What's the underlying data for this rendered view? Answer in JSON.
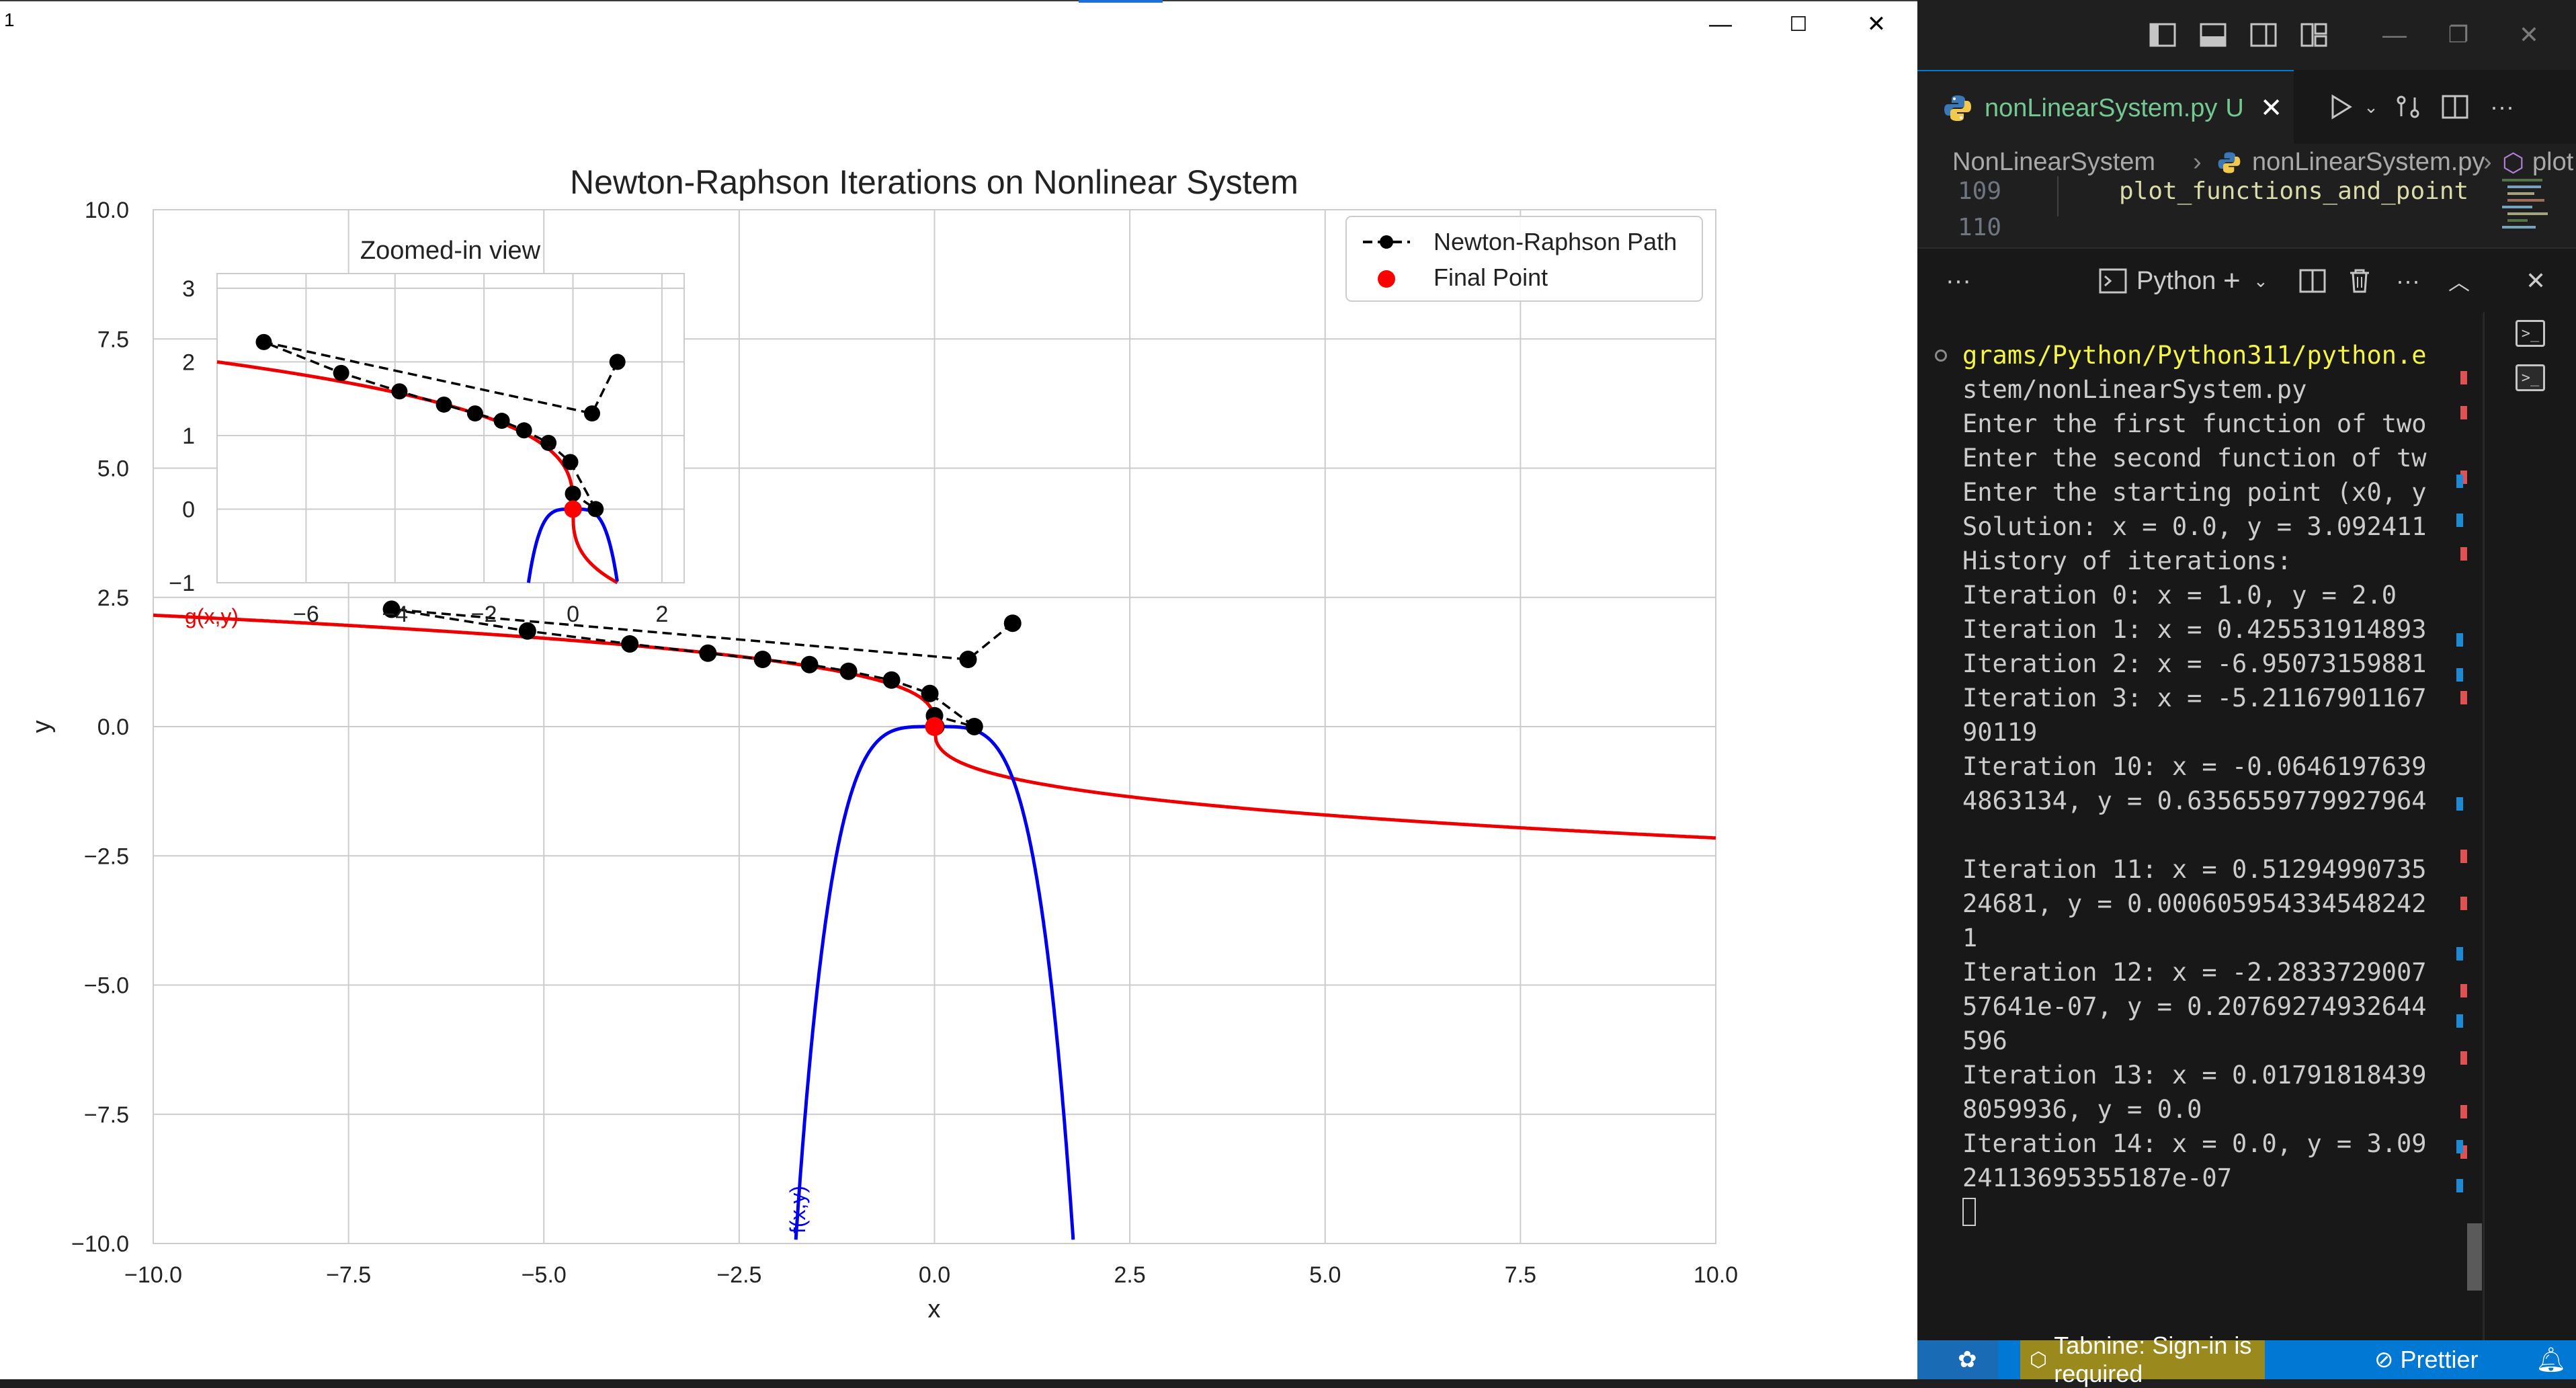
{
  "plot_window": {
    "title": "1",
    "controls": {
      "minimize": "—",
      "maximize": "☐",
      "close": "✕"
    }
  },
  "chart_data": [
    {
      "type": "line",
      "title": "Newton-Raphson Iterations on Nonlinear System",
      "xlabel": "x",
      "ylabel": "y",
      "xlim": [
        -10,
        10
      ],
      "ylim": [
        -10,
        10
      ],
      "xticks": [
        "−10.0",
        "−7.5",
        "−5.0",
        "−2.5",
        "0.0",
        "2.5",
        "5.0",
        "7.5",
        "10.0"
      ],
      "yticks": [
        "−10.0",
        "−7.5",
        "−5.0",
        "−2.5",
        "0.0",
        "2.5",
        "5.0",
        "7.5",
        "10.0"
      ],
      "grid": true,
      "legend_position": "top-right",
      "legend": [
        {
          "label": "Newton-Raphson Path",
          "style": "black dashed line with dots"
        },
        {
          "label": "Final Point",
          "style": "red dot"
        }
      ],
      "curve_labels": {
        "g": "g(x,y)",
        "f": "f(x,y)"
      },
      "colors": {
        "f": "#0000ee",
        "g": "#ee0000",
        "path": "#000000",
        "final": "#ff0000"
      },
      "path_points": [
        [
          1.0,
          2.0
        ],
        [
          0.43,
          1.3
        ],
        [
          -6.95,
          2.27
        ],
        [
          -5.21,
          1.85
        ],
        [
          -3.9,
          1.6
        ],
        [
          -2.9,
          1.42
        ],
        [
          -2.2,
          1.3
        ],
        [
          -1.6,
          1.2
        ],
        [
          -1.1,
          1.07
        ],
        [
          -0.55,
          0.9
        ],
        [
          -0.06,
          0.64
        ],
        [
          0.51,
          0.0006
        ],
        [
          0.0,
          0.21
        ],
        [
          0.018,
          0.0
        ],
        [
          0.0,
          0.0
        ]
      ],
      "final_point": [
        0.0,
        0.0
      ]
    },
    {
      "type": "line",
      "title": "Zoomed-in view",
      "xlim": [
        -8,
        2.5
      ],
      "ylim": [
        -1,
        3.2
      ],
      "xticks": [
        "−6",
        "−4",
        "−2",
        "0",
        "2"
      ],
      "yticks": [
        "−1",
        "0",
        "1",
        "2",
        "3"
      ],
      "grid": true
    }
  ],
  "vscode": {
    "tab": {
      "label": "nonLinearSystem.py",
      "status": "U"
    },
    "breadcrumb": [
      "NonLinearSystem",
      "nonLinearSystem.py",
      "plot"
    ],
    "code_lines": [
      {
        "num": "109",
        "text": "plot_functions_and_point"
      },
      {
        "num": "110",
        "text": ""
      }
    ],
    "panel": {
      "terminal_name": "Python",
      "more": "···"
    },
    "terminal_lines": [
      "grams/Python/Python311/python.e",
      "stem/nonLinearSystem.py",
      "Enter the first function of two",
      "Enter the second function of tw",
      "Enter the starting point (x0, y",
      "Solution: x = 0.0, y = 3.092411",
      "History of iterations:",
      "Iteration 0: x = 1.0, y = 2.0",
      "Iteration 1: x = 0.425531914893",
      "Iteration 2: x = -6.95073159881",
      "Iteration 3: x = -5.21167901167",
      "90119",
      "Iteration 10: x = -0.0646197639",
      "4863134, y = 0.6356559779927964",
      "",
      "Iteration 11: x = 0.51294990735",
      "24681, y = 0.000605954334548242",
      "1",
      "Iteration 12: x = -2.2833729007",
      "57641e-07, y = 0.20769274932644",
      "596",
      "Iteration 13: x = 0.01791818439",
      "8059936, y = 0.0",
      "Iteration 14: x = 0.0, y = 3.09",
      "24113695355187e-07"
    ],
    "status": {
      "tabnine": "Tabnine: Sign-in is required",
      "prettier": "Prettier"
    }
  }
}
